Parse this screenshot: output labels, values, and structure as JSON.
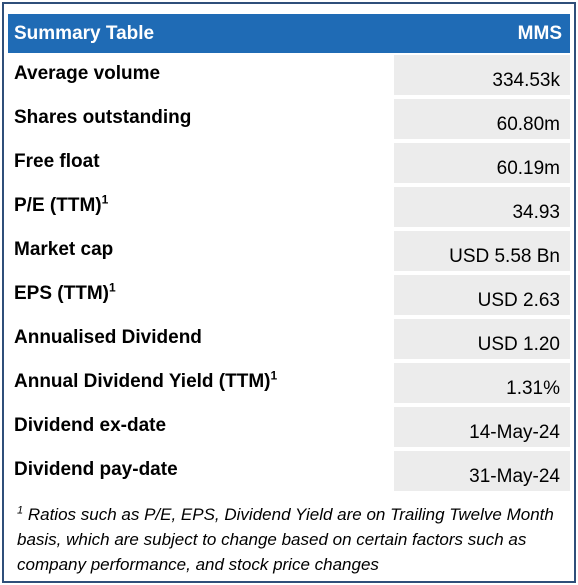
{
  "header": {
    "title": "Summary Table",
    "ticker": "MMS"
  },
  "rows": [
    {
      "label": "Average volume",
      "sup": "",
      "value": "334.53k"
    },
    {
      "label": "Shares outstanding",
      "sup": "",
      "value": "60.80m"
    },
    {
      "label": "Free float",
      "sup": "",
      "value": "60.19m"
    },
    {
      "label": "P/E (TTM)",
      "sup": "1",
      "value": "34.93"
    },
    {
      "label": "Market cap",
      "sup": "",
      "value": "USD 5.58 Bn"
    },
    {
      "label": "EPS (TTM)",
      "sup": "1",
      "value": "USD 2.63"
    },
    {
      "label": "Annualised Dividend",
      "sup": "",
      "value": "USD 1.20"
    },
    {
      "label": "Annual Dividend Yield (TTM)",
      "sup": "1",
      "value": "1.31%"
    },
    {
      "label": "Dividend ex-date",
      "sup": "",
      "value": "14-May-24"
    },
    {
      "label": "Dividend pay-date",
      "sup": "",
      "value": "31-May-24"
    }
  ],
  "footnote": {
    "marker": "1",
    "text": " Ratios such as P/E, EPS, Dividend Yield are on Trailing Twelve Month basis, which are subject to change based on certain factors such as company performance, and stock price changes"
  }
}
